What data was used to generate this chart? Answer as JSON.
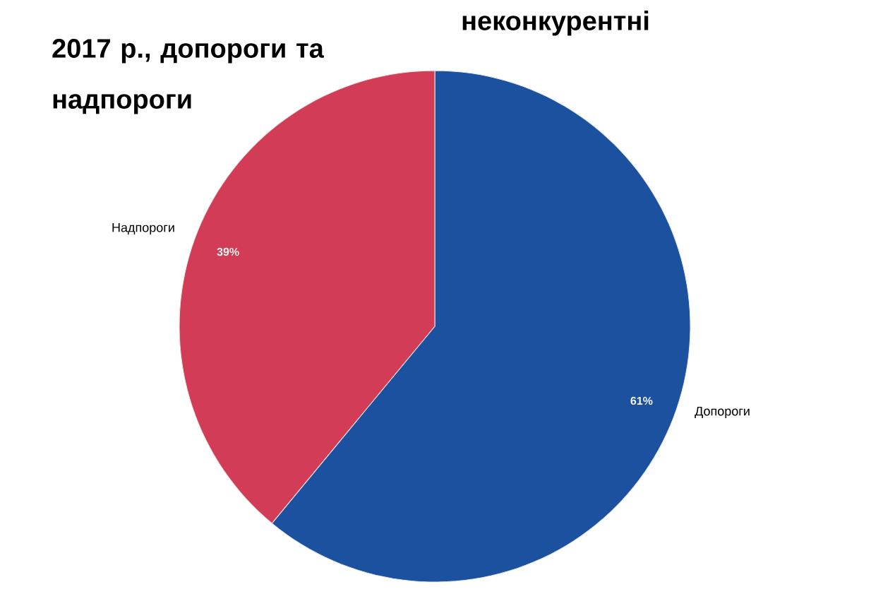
{
  "chart_data": {
    "type": "pie",
    "title": "2017 р., допороги та надпороги",
    "subtitle": "неконкурентні",
    "categories": [
      "Допороги",
      "Надпороги"
    ],
    "values": [
      61,
      39
    ],
    "value_labels": [
      "61%",
      "39%"
    ],
    "colors": [
      "#1b519f",
      "#d23c56"
    ]
  }
}
